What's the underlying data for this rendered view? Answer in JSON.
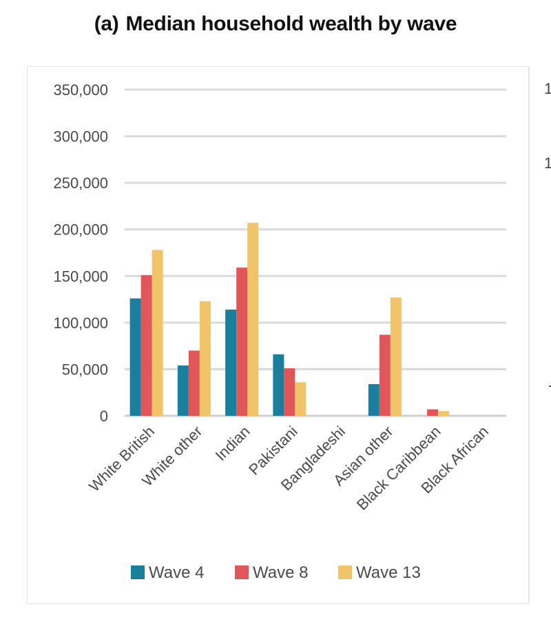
{
  "title": {
    "label": "(a)",
    "text": "Median household wealth by wave"
  },
  "side_panel": {
    "ticks": [
      "1",
      "1",
      "-"
    ]
  },
  "chart_data": {
    "type": "bar",
    "title": "(a) Median household wealth by wave",
    "xlabel": "",
    "ylabel": "",
    "ylim": [
      0,
      350000
    ],
    "yticks": [
      0,
      50000,
      100000,
      150000,
      200000,
      250000,
      300000,
      350000
    ],
    "ytick_labels": [
      "0",
      "50,000",
      "100,000",
      "150,000",
      "200,000",
      "250,000",
      "300,000",
      "350,000"
    ],
    "grid": true,
    "legend_position": "bottom",
    "categories": [
      "White British",
      "White other",
      "Indian",
      "Pakistani",
      "Bangladeshi",
      "Asian other",
      "Black Caribbean",
      "Black African"
    ],
    "series": [
      {
        "name": "Wave 4",
        "color": "#1a7f9c",
        "values": [
          126000,
          54000,
          114000,
          66000,
          0,
          34000,
          0,
          0
        ]
      },
      {
        "name": "Wave 8",
        "color": "#e15759",
        "values": [
          151000,
          70000,
          159000,
          51000,
          0,
          87000,
          7000,
          0
        ]
      },
      {
        "name": "Wave 13",
        "color": "#f1c46a",
        "values": [
          178000,
          123000,
          207000,
          36000,
          0,
          127000,
          5000,
          0
        ]
      }
    ]
  }
}
